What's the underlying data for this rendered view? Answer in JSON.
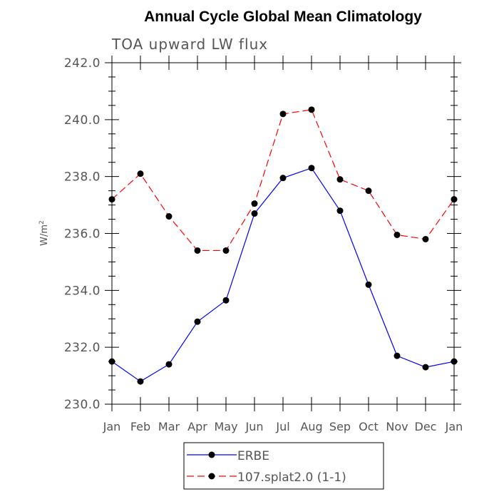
{
  "chart_data": {
    "type": "line",
    "title": "Annual Cycle Global Mean Climatology",
    "subtitle": "TOA upward LW flux",
    "ylabel": "W/m",
    "ylabel_sup": "2",
    "xlabel": "",
    "categories": [
      "Jan",
      "Feb",
      "Mar",
      "Apr",
      "May",
      "Jun",
      "Jul",
      "Aug",
      "Sep",
      "Oct",
      "Nov",
      "Dec",
      "Jan"
    ],
    "ylim": [
      230,
      242
    ],
    "yticks": [
      "230.0",
      "232.0",
      "234.0",
      "236.0",
      "238.0",
      "240.0",
      "242.0"
    ],
    "grid": false,
    "legend_position": "bottom-center",
    "series": [
      {
        "name": "ERBE",
        "color": "#0000ff",
        "style": "solid",
        "values": [
          231.5,
          230.8,
          231.4,
          232.9,
          233.65,
          236.7,
          237.95,
          238.3,
          236.8,
          234.2,
          231.7,
          231.3,
          231.5
        ]
      },
      {
        "name": "107.splat2.0 (1-1)",
        "color": "#ff0000",
        "style": "dashed",
        "values": [
          237.2,
          238.1,
          236.6,
          235.4,
          235.4,
          237.05,
          240.2,
          240.35,
          237.9,
          237.5,
          235.95,
          235.8,
          237.2
        ]
      }
    ]
  }
}
